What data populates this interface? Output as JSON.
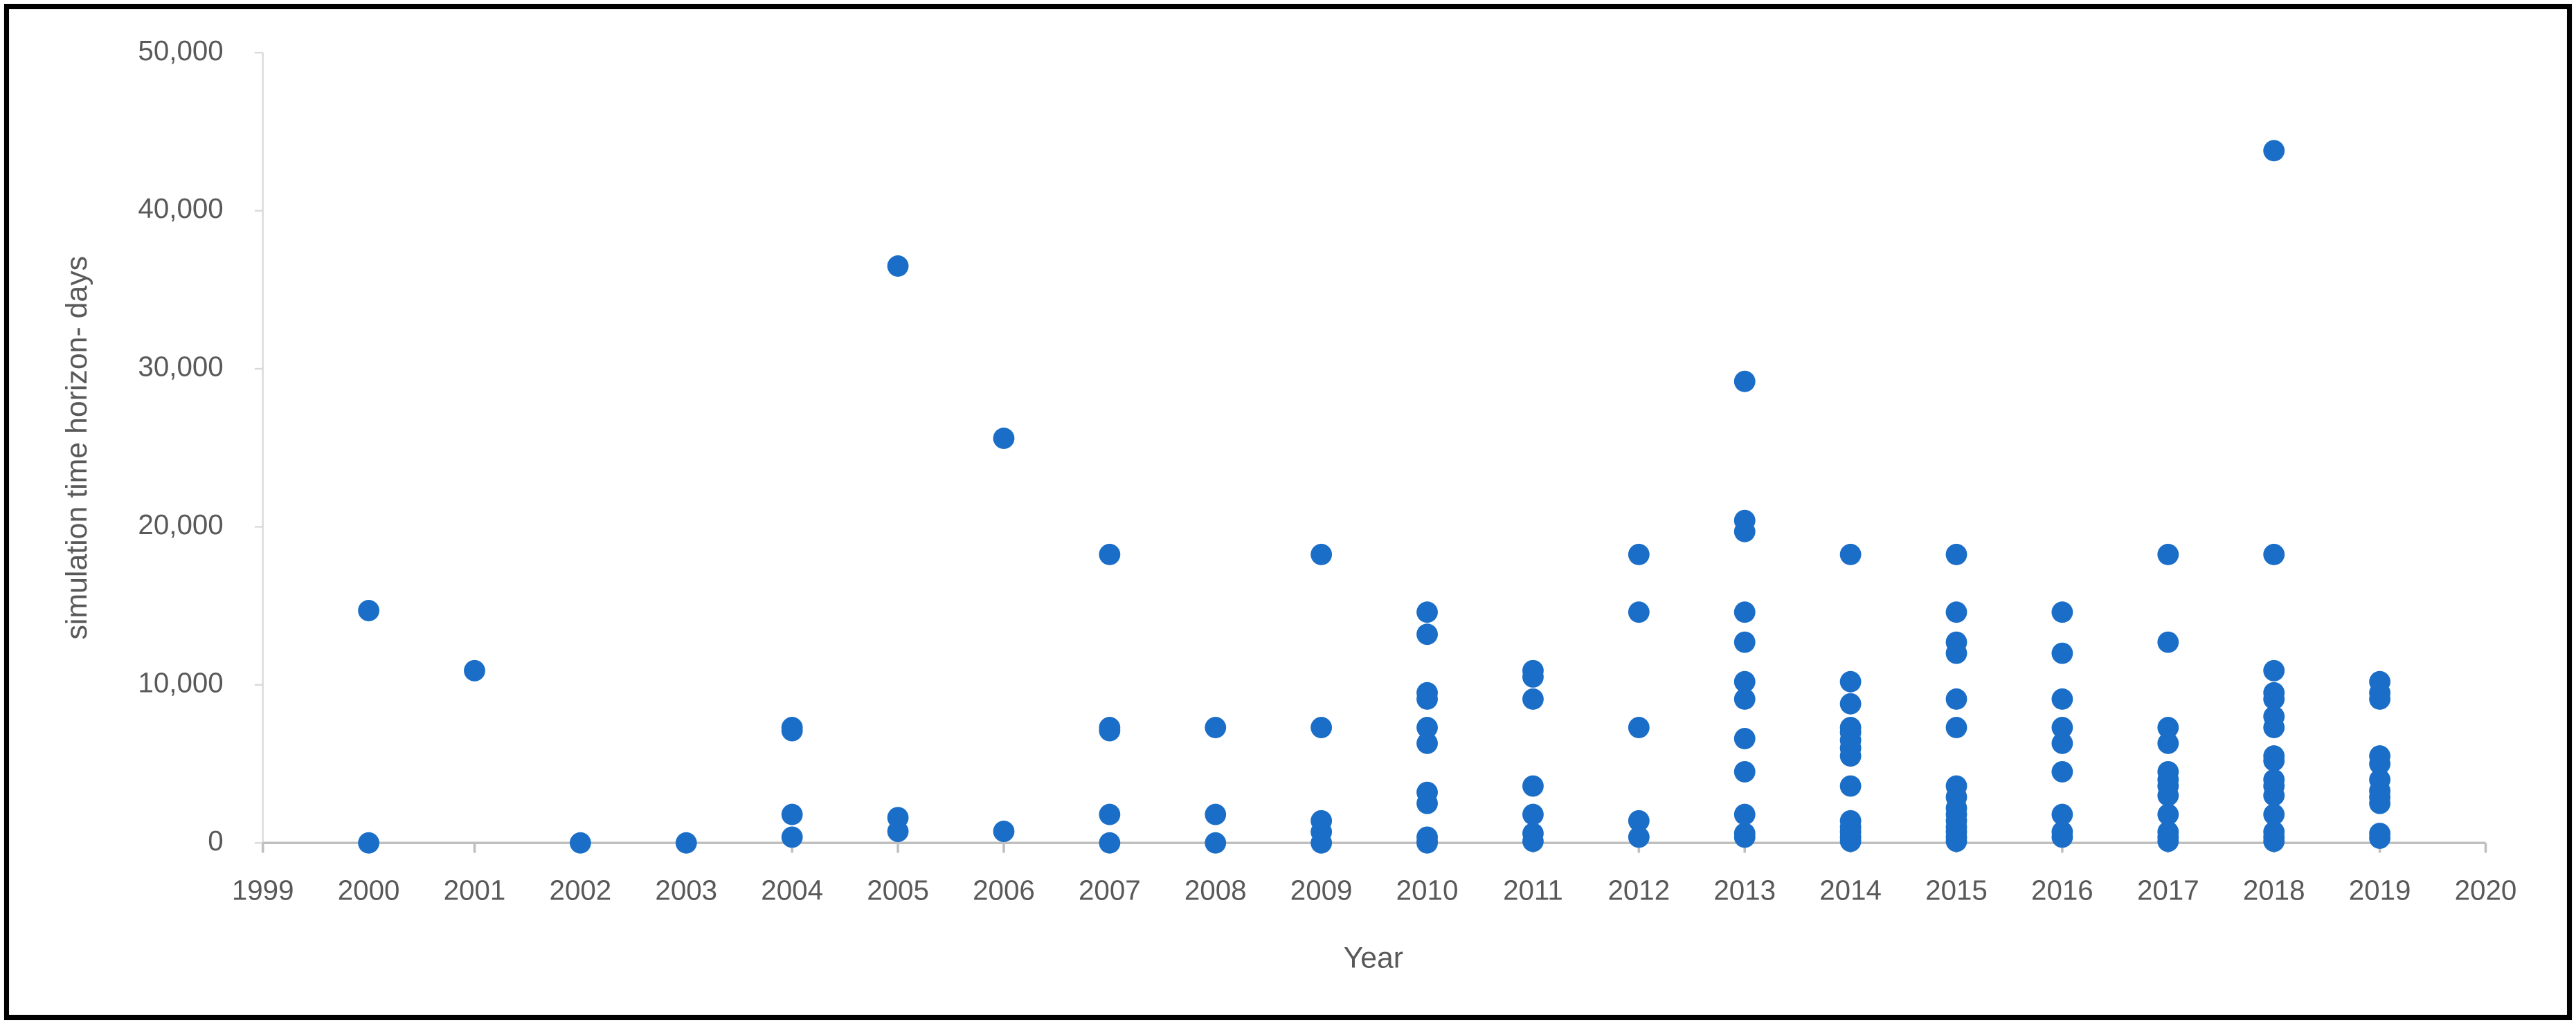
{
  "chart_data": {
    "type": "scatter",
    "x_label": "Year",
    "y_label": "simulation time horizon- days",
    "color": "#1b6ec7",
    "xlim": [
      1999,
      2020
    ],
    "ylim": [
      0,
      50000
    ],
    "xticks": [
      1999,
      2000,
      2001,
      2002,
      2003,
      2004,
      2005,
      2006,
      2007,
      2008,
      2009,
      2010,
      2011,
      2012,
      2013,
      2014,
      2015,
      2016,
      2017,
      2018,
      2019,
      2020
    ],
    "yticks": [
      0,
      {
        "value": 10000,
        "label": "10,000"
      },
      {
        "value": 20000,
        "label": "20,000"
      },
      {
        "value": 30000,
        "label": "30,000"
      },
      {
        "value": 40000,
        "label": "40,000"
      },
      {
        "value": 50000,
        "label": "50,000"
      }
    ],
    "grid": false,
    "x": [
      2000,
      2000,
      2001,
      2002,
      2003,
      2004,
      2004,
      2004,
      2004,
      2005,
      2005,
      2005,
      2006,
      2006,
      2007,
      2007,
      2007,
      2007,
      2007,
      2008,
      2008,
      2008,
      2009,
      2009,
      2009,
      2009,
      2009,
      2010,
      2010,
      2010,
      2010,
      2010,
      2010,
      2010,
      2010,
      2010,
      2010,
      2010,
      2011,
      2011,
      2011,
      2011,
      2011,
      2011,
      2011,
      2012,
      2012,
      2012,
      2012,
      2012,
      2013,
      2013,
      2013,
      2013,
      2013,
      2013,
      2013,
      2013,
      2013,
      2013,
      2013,
      2013,
      2014,
      2014,
      2014,
      2014,
      2014,
      2014,
      2014,
      2014,
      2014,
      2014,
      2014,
      2014,
      2014,
      2014,
      2015,
      2015,
      2015,
      2015,
      2015,
      2015,
      2015,
      2015,
      2015,
      2015,
      2015,
      2015,
      2015,
      2015,
      2015,
      2016,
      2016,
      2016,
      2016,
      2016,
      2016,
      2016,
      2016,
      2016,
      2017,
      2017,
      2017,
      2017,
      2017,
      2017,
      2017,
      2017,
      2017,
      2017,
      2017,
      2017,
      2018,
      2018,
      2018,
      2018,
      2018,
      2018,
      2018,
      2018,
      2018,
      2018,
      2018,
      2018,
      2018,
      2018,
      2018,
      2018,
      2019,
      2019,
      2019,
      2019,
      2019,
      2019,
      2019,
      2019,
      2019,
      2019,
      2019
    ],
    "y": [
      14700,
      0,
      10900,
      0,
      0,
      7300,
      7100,
      1800,
      365,
      36500,
      1600,
      730,
      25600,
      730,
      18250,
      7300,
      7100,
      1800,
      0,
      7300,
      1800,
      0,
      18250,
      7300,
      1400,
      700,
      0,
      14600,
      13200,
      9500,
      9100,
      7300,
      6300,
      3200,
      2500,
      365,
      100,
      0,
      10900,
      10500,
      9100,
      3600,
      1800,
      600,
      100,
      18250,
      14600,
      7300,
      1400,
      365,
      29200,
      20400,
      19700,
      14600,
      12700,
      10200,
      9100,
      6600,
      4500,
      1800,
      600,
      365,
      18250,
      10200,
      8800,
      7300,
      7000,
      6500,
      6000,
      5500,
      3600,
      1400,
      1000,
      700,
      365,
      100,
      18250,
      14600,
      12700,
      12000,
      9100,
      7300,
      3600,
      2900,
      2200,
      1800,
      1400,
      1000,
      700,
      365,
      100,
      14600,
      12000,
      9100,
      7300,
      6300,
      4500,
      1800,
      700,
      365,
      18250,
      12700,
      7300,
      6300,
      4500,
      4000,
      3600,
      3000,
      1800,
      700,
      365,
      100,
      43800,
      18250,
      10900,
      9500,
      9100,
      8000,
      7300,
      5500,
      5200,
      4000,
      3600,
      3000,
      1800,
      700,
      365,
      100,
      10200,
      9500,
      9100,
      5500,
      5000,
      4000,
      3300,
      2900,
      2500,
      600,
      300
    ]
  }
}
